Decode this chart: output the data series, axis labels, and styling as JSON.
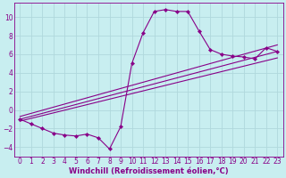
{
  "xlabel": "Windchill (Refroidissement éolien,°C)",
  "background_color": "#c8eef0",
  "grid_color": "#b0d8dc",
  "line_color": "#880088",
  "xlim": [
    -0.5,
    23.5
  ],
  "ylim": [
    -5.0,
    11.5
  ],
  "yticks": [
    -4,
    -2,
    0,
    2,
    4,
    6,
    8,
    10
  ],
  "xticks": [
    0,
    1,
    2,
    3,
    4,
    5,
    6,
    7,
    8,
    9,
    10,
    11,
    12,
    13,
    14,
    15,
    16,
    17,
    18,
    19,
    20,
    21,
    22,
    23
  ],
  "main_x": [
    0,
    1,
    2,
    3,
    4,
    5,
    6,
    7,
    8,
    9,
    10,
    11,
    12,
    13,
    14,
    15,
    16,
    17,
    18,
    19,
    20,
    21,
    22,
    23
  ],
  "main_y": [
    -1.0,
    -1.5,
    -2.0,
    -2.5,
    -2.7,
    -2.8,
    -2.6,
    -3.0,
    -4.2,
    -1.8,
    5.0,
    8.3,
    10.6,
    10.8,
    10.6,
    10.6,
    8.5,
    6.5,
    6.0,
    5.8,
    5.7,
    5.5,
    6.7,
    6.3
  ],
  "trend1_x": [
    0,
    23
  ],
  "trend1_y": [
    -1.0,
    6.3
  ],
  "trend2_x": [
    0,
    23
  ],
  "trend2_y": [
    -0.7,
    7.0
  ],
  "trend3_x": [
    0,
    23
  ],
  "trend3_y": [
    -1.2,
    5.6
  ],
  "tick_fontsize": 5.5,
  "label_fontsize": 6.0,
  "linewidth": 0.8,
  "markersize": 2.2
}
